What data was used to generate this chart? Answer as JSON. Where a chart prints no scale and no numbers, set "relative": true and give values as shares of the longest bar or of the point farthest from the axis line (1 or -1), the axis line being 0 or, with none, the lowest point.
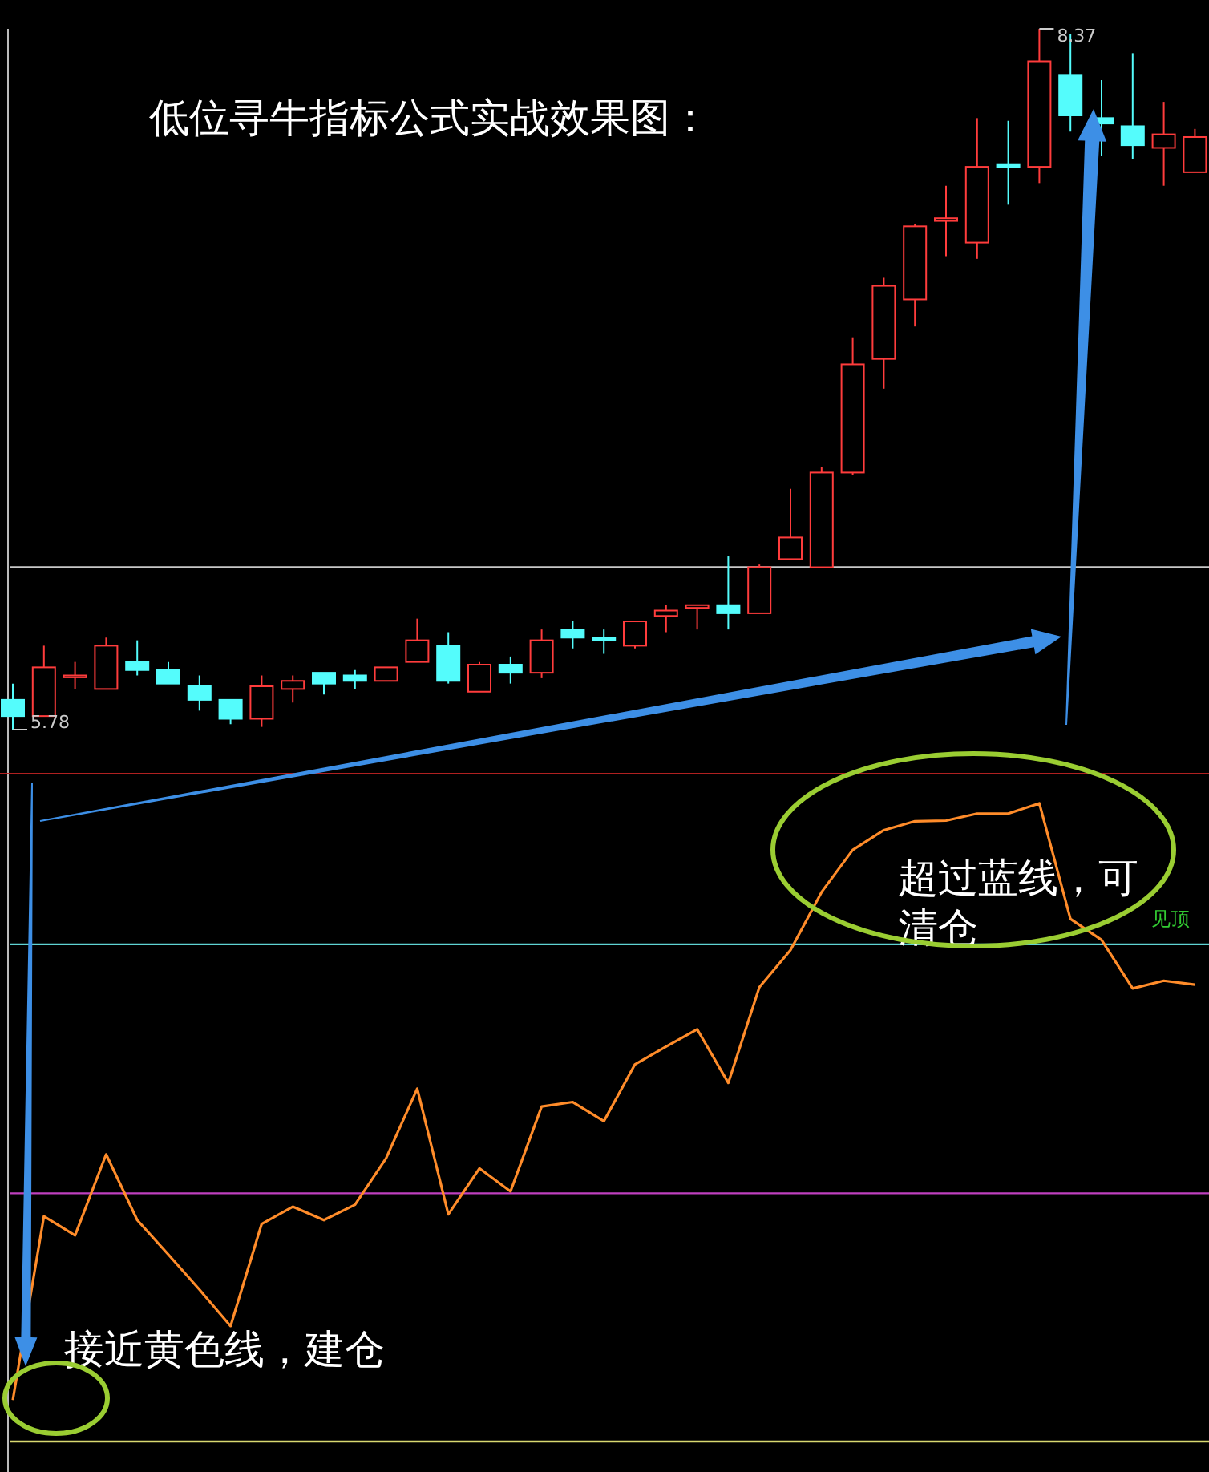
{
  "chart_data": [
    {
      "type": "candlestick",
      "title": "低位寻牛指标公式实战效果图：",
      "categories": [
        null,
        null,
        null,
        null,
        null,
        null,
        null,
        null,
        null,
        null,
        null,
        null,
        null,
        null,
        null,
        null,
        null,
        null,
        null,
        null,
        null,
        null,
        null,
        null,
        null,
        null,
        null,
        null,
        null,
        null,
        null,
        null,
        null,
        null,
        null,
        null,
        null,
        null,
        null
      ],
      "ohlc": [
        [
          5.89,
          5.95,
          5.78,
          5.83
        ],
        [
          5.83,
          6.09,
          5.83,
          6.01
        ],
        [
          5.98,
          6.03,
          5.93,
          5.98
        ],
        [
          5.93,
          6.12,
          5.93,
          6.09
        ],
        [
          6.03,
          6.11,
          5.98,
          6.0
        ],
        [
          6.0,
          6.03,
          5.95,
          5.95
        ],
        [
          5.94,
          5.98,
          5.85,
          5.89
        ],
        [
          5.89,
          5.89,
          5.8,
          5.82
        ],
        [
          5.82,
          5.98,
          5.79,
          5.94
        ],
        [
          5.93,
          5.98,
          5.88,
          5.96
        ],
        [
          5.99,
          5.99,
          5.91,
          5.95
        ],
        [
          5.98,
          6.0,
          5.93,
          5.96
        ],
        [
          5.96,
          6.01,
          5.96,
          6.01
        ],
        [
          6.03,
          6.19,
          6.03,
          6.11
        ],
        [
          6.09,
          6.14,
          5.95,
          5.96
        ],
        [
          5.92,
          6.03,
          5.92,
          6.02
        ],
        [
          6.02,
          6.05,
          5.95,
          5.99
        ],
        [
          5.99,
          6.15,
          5.97,
          6.11
        ],
        [
          6.15,
          6.18,
          6.08,
          6.12
        ],
        [
          6.12,
          6.15,
          6.06,
          6.11
        ],
        [
          6.09,
          6.18,
          6.08,
          6.18
        ],
        [
          6.2,
          6.24,
          6.14,
          6.22
        ],
        [
          6.23,
          6.24,
          6.15,
          6.24
        ],
        [
          6.24,
          6.42,
          6.15,
          6.21
        ],
        [
          6.21,
          6.39,
          6.21,
          6.38
        ],
        [
          6.41,
          6.67,
          6.41,
          6.49
        ],
        [
          6.38,
          6.75,
          6.38,
          6.73
        ],
        [
          6.73,
          7.23,
          6.72,
          7.13
        ],
        [
          7.15,
          7.45,
          7.04,
          7.42
        ],
        [
          7.37,
          7.65,
          7.27,
          7.64
        ],
        [
          7.66,
          7.79,
          7.53,
          7.67
        ],
        [
          7.58,
          8.04,
          7.52,
          7.86
        ],
        [
          7.87,
          8.03,
          7.72,
          7.86
        ],
        [
          7.86,
          8.37,
          7.8,
          8.25
        ],
        [
          8.2,
          8.35,
          7.99,
          8.05
        ],
        [
          8.04,
          8.18,
          7.9,
          8.02
        ],
        [
          8.01,
          8.28,
          7.89,
          7.94
        ],
        [
          7.93,
          8.1,
          7.79,
          7.98
        ],
        [
          7.84,
          8.0,
          7.84,
          7.97
        ]
      ],
      "colors": [
        "#54fcfc",
        "#ff3c3c",
        "#ff3c3c",
        "#ff3c3c",
        "#54fcfc",
        "#54fcfc",
        "#54fcfc",
        "#54fcfc",
        "#ff3c3c",
        "#ff3c3c",
        "#54fcfc",
        "#54fcfc",
        "#ff3c3c",
        "#ff3c3c",
        "#54fcfc",
        "#ff3c3c",
        "#54fcfc",
        "#ff3c3c",
        "#54fcfc",
        "#54fcfc",
        "#ff3c3c",
        "#ff3c3c",
        "#ff3c3c",
        "#54fcfc",
        "#ff3c3c",
        "#ff3c3c",
        "#ff3c3c",
        "#ff3c3c",
        "#ff3c3c",
        "#ff3c3c",
        "#ff3c3c",
        "#ff3c3c",
        "#54fcfc",
        "#ff3c3c",
        "#54fcfc",
        "#54fcfc",
        "#54fcfc",
        "#ff3c3c",
        "#ff3c3c"
      ],
      "ref_lines": [
        {
          "axis": "y",
          "value": 6.38,
          "color": "#c8c8c8",
          "line_style": "solid"
        }
      ],
      "annotations": [
        "8.37",
        "5.78"
      ]
    },
    {
      "type": "line",
      "relative": true,
      "categories": [
        null,
        null,
        null,
        null,
        null,
        null,
        null,
        null,
        null,
        null,
        null,
        null,
        null,
        null,
        null,
        null,
        null,
        null,
        null,
        null,
        null,
        null,
        null,
        null,
        null,
        null,
        null,
        null,
        null,
        null,
        null,
        null,
        null,
        null,
        null,
        null,
        null,
        null,
        null
      ],
      "series": [
        {
          "color": "#ff8c2a",
          "values": [
            0.065,
            0.353,
            0.323,
            0.45,
            0.347,
            0.293,
            0.238,
            0.181,
            0.341,
            0.368,
            0.347,
            0.371,
            0.444,
            0.553,
            0.356,
            0.428,
            0.392,
            0.525,
            0.532,
            0.502,
            0.591,
            0.619,
            0.646,
            0.562,
            0.712,
            0.77,
            0.861,
            0.927,
            0.958,
            0.972,
            0.973,
            0.984,
            0.984,
            1,
            0.819,
            0.786,
            0.71,
            0.722,
            0.716
          ]
        }
      ],
      "line_style": "solid",
      "marker": "none",
      "ref_lines": [
        {
          "axis": "y",
          "value": 0.779,
          "color": "#5fd3d3",
          "line_style": "solid"
        },
        {
          "axis": "y",
          "value": 0.389,
          "color": "#c040c0",
          "line_style": "solid"
        },
        {
          "axis": "y",
          "value": 0,
          "color": "#d8d870",
          "line_style": "solid"
        }
      ],
      "annotations": [
        "超过蓝线，可清仓",
        "见顶",
        "接近黄色线，建仓"
      ]
    }
  ]
}
